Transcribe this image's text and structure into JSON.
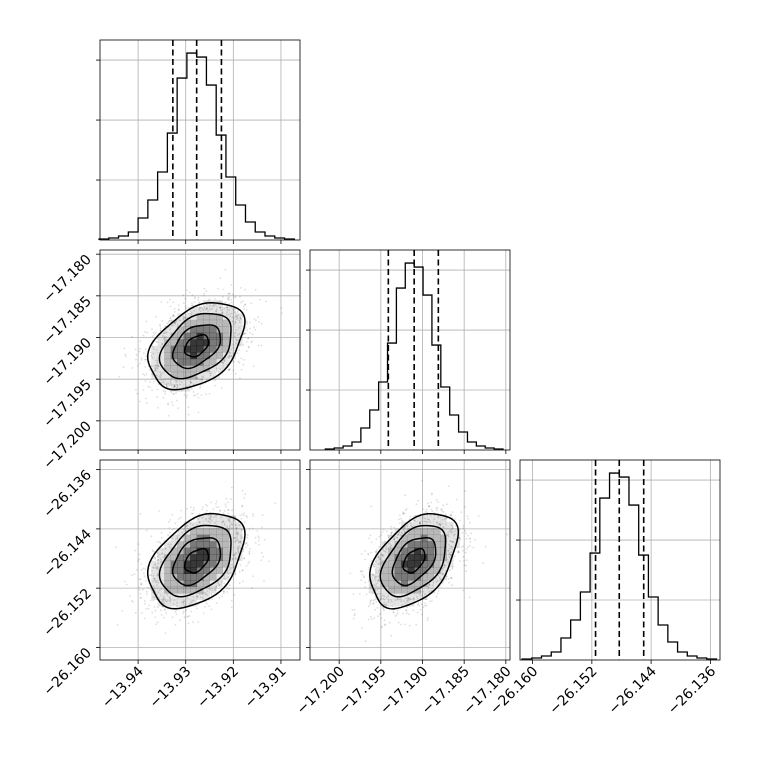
{
  "chart_data": {
    "type": "corner",
    "parameters": [
      {
        "index": 0,
        "range": [
          -13.948,
          -13.906
        ],
        "ticks": [
          -13.94,
          -13.93,
          -13.92,
          -13.91
        ],
        "tick_labels": [
          "−13.94",
          "−13.93",
          "−13.92",
          "−13.91"
        ],
        "mean": -13.9277,
        "sd": 0.005,
        "quantiles": [
          -13.9327,
          -13.9277,
          -13.9225
        ]
      },
      {
        "index": 1,
        "range": [
          -17.2035,
          -17.1795
        ],
        "ticks": [
          -17.2,
          -17.195,
          -17.19,
          -17.185,
          -17.18
        ],
        "tick_labels": [
          "−17.200",
          "−17.195",
          "−17.190",
          "−17.185",
          "−17.180"
        ],
        "mean": -17.191,
        "sd": 0.0026,
        "quantiles": [
          -17.1941,
          -17.191,
          -17.1881
        ]
      },
      {
        "index": 2,
        "range": [
          -26.1617,
          -26.1347
        ],
        "ticks": [
          -26.16,
          -26.152,
          -26.144,
          -26.136
        ],
        "tick_labels": [
          "−26.160",
          "−26.152",
          "−26.144",
          "−26.136"
        ],
        "mean": -26.1483,
        "sd": 0.0032,
        "quantiles": [
          -26.1515,
          -26.1483,
          -26.145
        ]
      }
    ],
    "correlations": {
      "1_0": 0.4,
      "2_0": 0.4,
      "2_1": 0.45
    },
    "histograms": [
      {
        "param": 0,
        "bins": 20,
        "counts": [
          1,
          2,
          4,
          8,
          22,
          40,
          68,
          107,
          162,
          187,
          183,
          155,
          105,
          63,
          35,
          18,
          8,
          4,
          2,
          1
        ]
      },
      {
        "param": 1,
        "bins": 20,
        "counts": [
          1,
          2,
          4,
          8,
          22,
          40,
          68,
          107,
          162,
          187,
          183,
          155,
          105,
          63,
          35,
          18,
          8,
          4,
          2,
          1
        ]
      },
      {
        "param": 2,
        "bins": 20,
        "counts": [
          1,
          2,
          4,
          8,
          22,
          40,
          68,
          107,
          162,
          187,
          183,
          155,
          105,
          63,
          35,
          18,
          8,
          4,
          2,
          1
        ]
      }
    ],
    "contour_levels_sigma": [
      0.5,
      1.0,
      1.5,
      2.0
    ],
    "scatter_points_per_panel": 1800,
    "grid": true,
    "colors": {
      "ink": "#000000",
      "grid": "#b0b0b0",
      "scatter": "#000000"
    }
  }
}
